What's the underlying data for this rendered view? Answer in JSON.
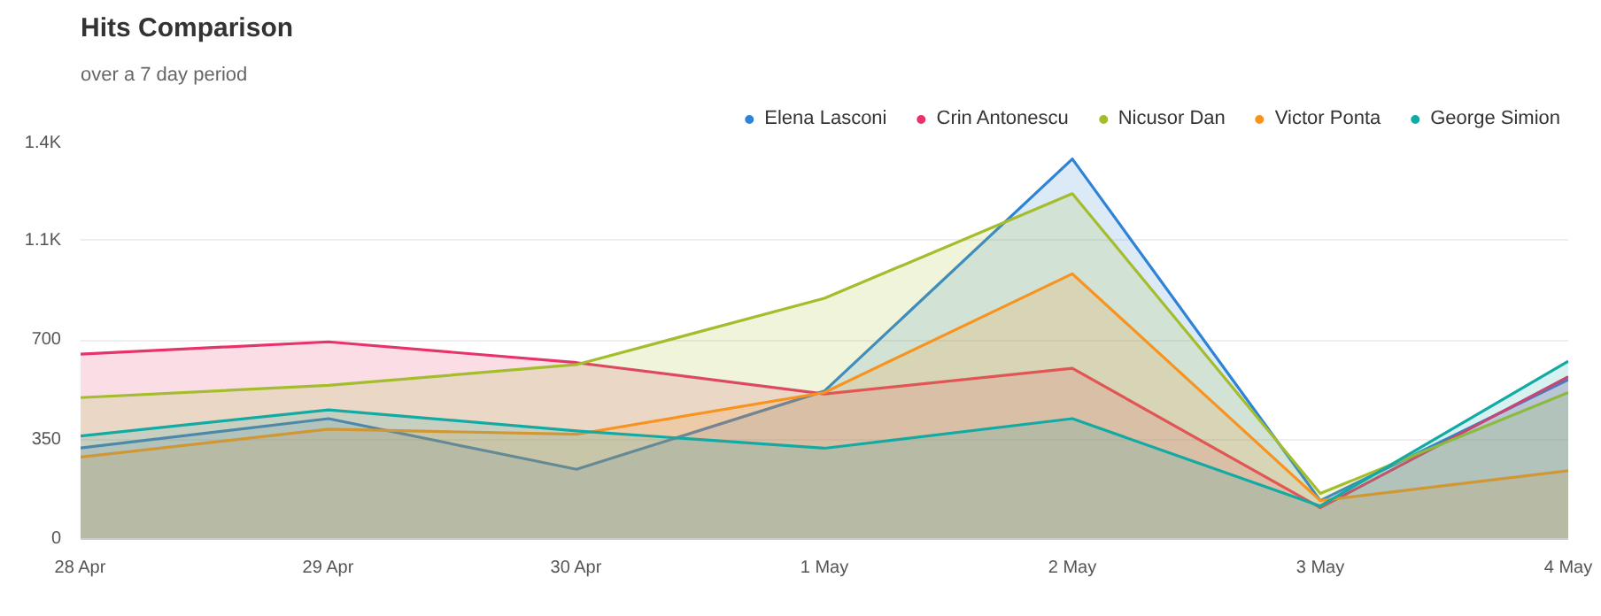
{
  "chart_data": {
    "type": "area",
    "title": "Hits Comparison",
    "subtitle": "over a 7 day period",
    "categories": [
      "28 Apr",
      "29 Apr",
      "30 Apr",
      "1 May",
      "2 May",
      "3 May",
      "4 May"
    ],
    "series": [
      {
        "name": "Elena Lasconi",
        "color": "#2f83d6",
        "values": [
          320,
          423,
          245,
          520,
          1336,
          135,
          560
        ]
      },
      {
        "name": "Crin Antonescu",
        "color": "#e8336a",
        "values": [
          650,
          693,
          620,
          510,
          600,
          110,
          570
        ]
      },
      {
        "name": "Nicusor Dan",
        "color": "#a3bd2c",
        "values": [
          497,
          540,
          613,
          846,
          1214,
          160,
          515
        ]
      },
      {
        "name": "Victor Ponta",
        "color": "#f7931e",
        "values": [
          288,
          386,
          368,
          515,
          932,
          135,
          240
        ]
      },
      {
        "name": "George Simion",
        "color": "#14aaa4",
        "values": [
          362,
          454,
          380,
          319,
          423,
          116,
          625
        ]
      }
    ],
    "ylim": [
      0,
      1400
    ],
    "yticks": [
      0,
      350,
      700,
      {
        "value": 1050,
        "label": "1.1K"
      },
      {
        "value": 1400,
        "label": "1.4K"
      }
    ],
    "grid": "y",
    "legend": "top right",
    "marker": "none",
    "line_style": "solid"
  }
}
